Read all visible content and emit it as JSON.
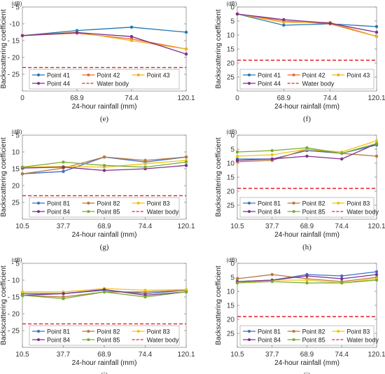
{
  "series_colors": {
    "Point 41": "#1f77b4",
    "Point 42": "#ed6a2b",
    "Point 43": "#edb120",
    "Point 44": "#7e2f8e",
    "Point 81": "#3d6fc4",
    "Point 82": "#b5793c",
    "Point 83": "#f0c30f",
    "Point 84": "#7e2f8e",
    "Point 85": "#77ac30",
    "Water body": "#e0242b"
  },
  "chart_data": [
    {
      "panel": "(e)",
      "type": "line",
      "unit_label": "(dB)",
      "ylabel": "Backscattering coefficient",
      "xlabel": "24-hour rainfall (mm)",
      "categories": [
        "0",
        "68.9",
        "74.4",
        "120.1"
      ],
      "y_inverted": true,
      "ylim": [
        -30,
        -5
      ],
      "yticks": [
        -5,
        -10,
        -15,
        -20,
        -25
      ],
      "ytick_labels": [
        "- 5",
        "-10",
        "- 15",
        "- 20",
        "- 25"
      ],
      "legend_placement": "bottom-inside",
      "grid": false,
      "series": [
        {
          "name": "Point 41",
          "values": [
            -13.5,
            -12.0,
            -11.0,
            -12.5
          ]
        },
        {
          "name": "Point 42",
          "values": [
            -13.5,
            -12.8,
            -14.5,
            -17.5
          ]
        },
        {
          "name": "Point 43",
          "values": [
            -13.5,
            -12.5,
            -15.0,
            -17.5
          ]
        },
        {
          "name": "Point 44",
          "values": [
            -13.5,
            -12.6,
            -13.8,
            -19.0
          ]
        },
        {
          "name": "Water body",
          "values": [
            -23.0,
            -23.0,
            -23.0,
            -23.0
          ],
          "dashed": true
        }
      ]
    },
    {
      "panel": "(f)",
      "type": "line",
      "unit_label": "(dB)",
      "ylabel": "Backscattering coefficient",
      "xlabel": "24-hour rainfall (mm)",
      "categories": [
        "0",
        "68.9",
        "74.4",
        "120.1"
      ],
      "y_inverted": true,
      "ylim": [
        -30,
        0
      ],
      "yticks": [
        0,
        -5,
        -10,
        -15,
        -20,
        -25
      ],
      "ytick_labels": [
        "0",
        "5",
        "10",
        "15",
        "20",
        "25"
      ],
      "legend_placement": "bottom-inside",
      "grid": false,
      "series": [
        {
          "name": "Point 41",
          "values": [
            -2.5,
            -6.5,
            -6.0,
            -7.0
          ]
        },
        {
          "name": "Point 42",
          "values": [
            -2.5,
            -5.0,
            -6.0,
            -10.5
          ]
        },
        {
          "name": "Point 43",
          "values": [
            -2.5,
            -5.5,
            -5.5,
            -10.5
          ]
        },
        {
          "name": "Point 44",
          "values": [
            -2.5,
            -4.5,
            -5.8,
            -9.0
          ]
        },
        {
          "name": "Water body",
          "values": [
            -19.0,
            -19.0,
            -19.0,
            -19.0
          ],
          "dashed": true
        }
      ]
    },
    {
      "panel": "(g)",
      "type": "line",
      "unit_label": "(dB)",
      "ylabel": "Backscattering coefficient",
      "xlabel": "24-hour rainfall (mm)",
      "categories": [
        "10.5",
        "37.7",
        "68.9",
        "74.4",
        "120.1"
      ],
      "y_inverted": true,
      "ylim": [
        -30,
        -5
      ],
      "yticks": [
        -5,
        -10,
        -15,
        -20,
        -25
      ],
      "ytick_labels": [
        "- 5",
        "10",
        "15",
        "20",
        "25"
      ],
      "legend_placement": "bottom-inside",
      "grid": false,
      "series": [
        {
          "name": "Point 81",
          "values": [
            -16.5,
            -15.8,
            -11.5,
            -13.0,
            -11.5
          ]
        },
        {
          "name": "Point 82",
          "values": [
            -16.5,
            -14.8,
            -11.5,
            -12.5,
            -11.5
          ]
        },
        {
          "name": "Point 83",
          "values": [
            -14.5,
            -14.3,
            -14.5,
            -13.5,
            -12.5
          ]
        },
        {
          "name": "Point 84",
          "values": [
            -14.8,
            -14.5,
            -15.5,
            -15.0,
            -14.0
          ]
        },
        {
          "name": "Point 85",
          "values": [
            -14.5,
            -13.0,
            -14.0,
            -14.5,
            -13.0
          ]
        },
        {
          "name": "Water body",
          "values": [
            -23.0,
            -23.0,
            -23.0,
            -23.0,
            -23.0
          ],
          "dashed": true
        }
      ]
    },
    {
      "panel": "(h)",
      "type": "line",
      "unit_label": "(dB)",
      "ylabel": "Backscattering coefficient",
      "xlabel": "24-hour rainfall (mm)",
      "categories": [
        "10.5",
        "37.7",
        "68.9",
        "74.4",
        "120.1"
      ],
      "y_inverted": true,
      "ylim": [
        -30,
        0
      ],
      "yticks": [
        0,
        -5,
        -10,
        -15,
        -20,
        -25
      ],
      "ytick_labels": [
        "0",
        "5",
        "10",
        "15",
        "20",
        "25"
      ],
      "legend_placement": "bottom-inside",
      "grid": false,
      "series": [
        {
          "name": "Point 81",
          "values": [
            -8.5,
            -8.5,
            -5.5,
            -6.5,
            -3.5
          ]
        },
        {
          "name": "Point 82",
          "values": [
            -9.5,
            -9.0,
            -5.0,
            -6.5,
            -7.5
          ]
        },
        {
          "name": "Point 83",
          "values": [
            -7.5,
            -7.0,
            -5.0,
            -6.0,
            -2.0
          ]
        },
        {
          "name": "Point 84",
          "values": [
            -9.0,
            -8.5,
            -7.5,
            -8.5,
            -3.0
          ]
        },
        {
          "name": "Point 85",
          "values": [
            -6.0,
            -5.5,
            -4.5,
            -6.5,
            -3.0
          ]
        },
        {
          "name": "Water body",
          "values": [
            -19.0,
            -19.0,
            -19.0,
            -19.0,
            -19.0
          ],
          "dashed": true
        }
      ]
    },
    {
      "panel": "(i)",
      "type": "line",
      "unit_label": "(dB)",
      "ylabel": "Backscattering coefficient",
      "xlabel": "24-hour rainfall (mm)",
      "categories": [
        "10.5",
        "37.7",
        "68.9",
        "74.4",
        "120.1"
      ],
      "y_inverted": true,
      "ylim": [
        -30,
        -5
      ],
      "yticks": [
        -5,
        -10,
        -15,
        -20,
        -25
      ],
      "ytick_labels": [
        "- 5",
        "- 10",
        "- 15",
        "- 20",
        "- 25"
      ],
      "legend_placement": "bottom-inside",
      "grid": false,
      "series": [
        {
          "name": "Point 81",
          "values": [
            -14.0,
            -14.0,
            -13.0,
            -14.0,
            -13.0
          ]
        },
        {
          "name": "Point 82",
          "values": [
            -14.5,
            -15.0,
            -13.5,
            -13.5,
            -13.0
          ]
        },
        {
          "name": "Point 83",
          "values": [
            -13.5,
            -13.5,
            -12.5,
            -13.0,
            -12.8
          ]
        },
        {
          "name": "Point 84",
          "values": [
            -14.5,
            -14.0,
            -12.8,
            -14.5,
            -13.5
          ]
        },
        {
          "name": "Point 85",
          "values": [
            -14.5,
            -15.5,
            -13.5,
            -15.0,
            -13.5
          ]
        },
        {
          "name": "Water body",
          "values": [
            -23.0,
            -23.0,
            -23.0,
            -23.0,
            -23.0
          ],
          "dashed": true
        }
      ]
    },
    {
      "panel": "(j)",
      "type": "line",
      "unit_label": "(dB)",
      "ylabel": "Backscattering coefficient",
      "xlabel": "24-hour rainfall (mm)",
      "categories": [
        "10.5",
        "37.7",
        "68.9",
        "74.4",
        "120.1"
      ],
      "y_inverted": true,
      "ylim": [
        -30,
        0
      ],
      "yticks": [
        0,
        -5,
        -10,
        -15,
        -20,
        -25
      ],
      "ytick_labels": [
        "0",
        "5",
        "10",
        "15",
        "20",
        "25"
      ],
      "legend_placement": "bottom-inside",
      "grid": false,
      "series": [
        {
          "name": "Point 81",
          "values": [
            -6.5,
            -6.0,
            -4.0,
            -4.5,
            -3.0
          ]
        },
        {
          "name": "Point 82",
          "values": [
            -5.5,
            -4.0,
            -5.5,
            -6.5,
            -5.0
          ]
        },
        {
          "name": "Point 83",
          "values": [
            -7.0,
            -6.0,
            -6.0,
            -7.0,
            -5.5
          ]
        },
        {
          "name": "Point 84",
          "values": [
            -6.5,
            -6.0,
            -4.5,
            -5.5,
            -4.0
          ]
        },
        {
          "name": "Point 85",
          "values": [
            -7.0,
            -6.5,
            -7.0,
            -7.0,
            -6.0
          ]
        },
        {
          "name": "Water body",
          "values": [
            -19.0,
            -19.0,
            -19.0,
            -19.0,
            -19.0
          ],
          "dashed": true
        }
      ]
    }
  ]
}
